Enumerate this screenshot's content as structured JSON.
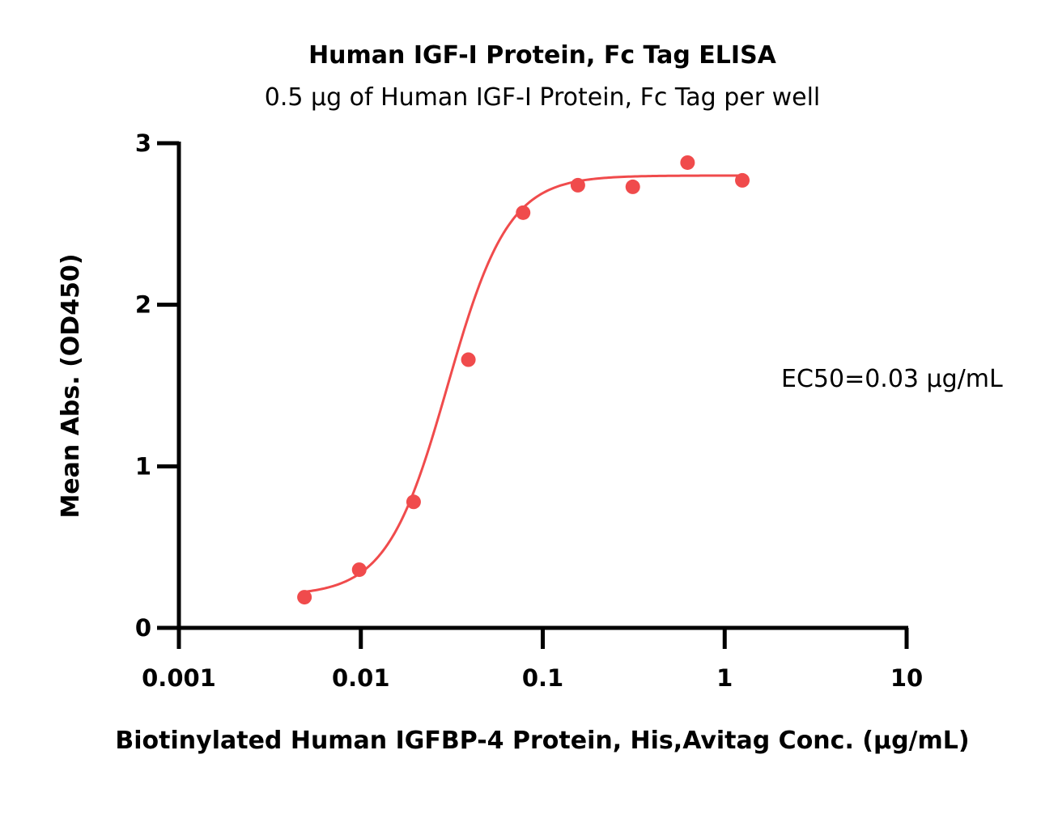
{
  "chart_data": {
    "type": "scatter",
    "title": "Human IGF-I Protein, Fc Tag ELISA",
    "subtitle": "0.5 μg of Human IGF-I Protein, Fc Tag per well",
    "xlabel": "Biotinylated Human IGFBP-4 Protein, His,Avitag Conc. (μg/mL)",
    "ylabel": "Mean Abs. (OD450)",
    "x_scale": "log",
    "xlim": [
      0.001,
      10
    ],
    "ylim": [
      0,
      3
    ],
    "x_ticks": [
      "0.001",
      "0.01",
      "0.1",
      "1",
      "10"
    ],
    "y_ticks": [
      "0",
      "1",
      "2",
      "3"
    ],
    "grid": false,
    "annotation": "EC50=0.03 μg/mL",
    "series": [
      {
        "color": "#f04b4c",
        "x": [
          0.0049,
          0.0098,
          0.0195,
          0.039,
          0.078,
          0.156,
          0.3125,
          0.625,
          1.25
        ],
        "y": [
          0.19,
          0.36,
          0.78,
          1.66,
          2.57,
          2.74,
          2.73,
          2.88,
          2.77
        ],
        "fit": "4PL",
        "fit_params": {
          "bottom": 0.2,
          "top": 2.8,
          "ec50": 0.03,
          "hill": 2.6
        }
      }
    ]
  }
}
